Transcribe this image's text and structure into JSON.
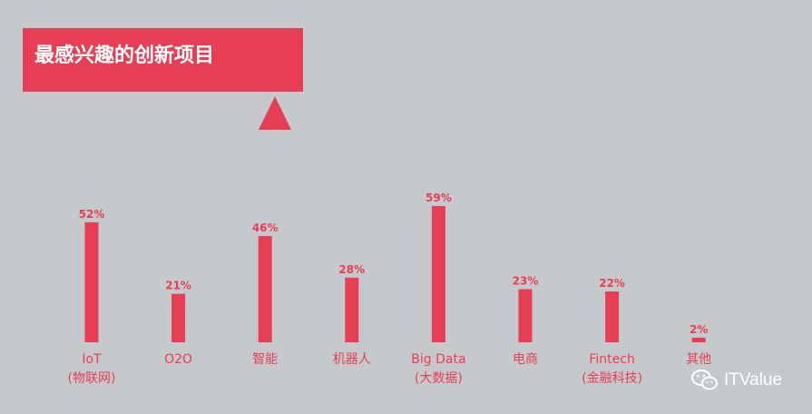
{
  "title": "最感兴趣的创新项目",
  "watermark": "ITValue",
  "colors": {
    "bar": "#e63f55",
    "label": "#e63f55",
    "background": "#c5c9cc"
  },
  "chart_data": {
    "type": "bar",
    "title": "最感兴趣的创新项目",
    "categories": [
      [
        "IoT",
        "(物联网)"
      ],
      [
        "O2O"
      ],
      [
        "智能"
      ],
      [
        "机器人"
      ],
      [
        "Big Data",
        "(大数据)"
      ],
      [
        "电商"
      ],
      [
        "Fintech",
        "(金融科技)"
      ],
      [
        "其他"
      ]
    ],
    "values": [
      52,
      21,
      46,
      28,
      59,
      23,
      22,
      2
    ],
    "value_labels": [
      "52%",
      "21%",
      "46%",
      "28%",
      "59%",
      "23%",
      "22%",
      "2%"
    ],
    "ylim": [
      0,
      100
    ],
    "grid": false
  }
}
